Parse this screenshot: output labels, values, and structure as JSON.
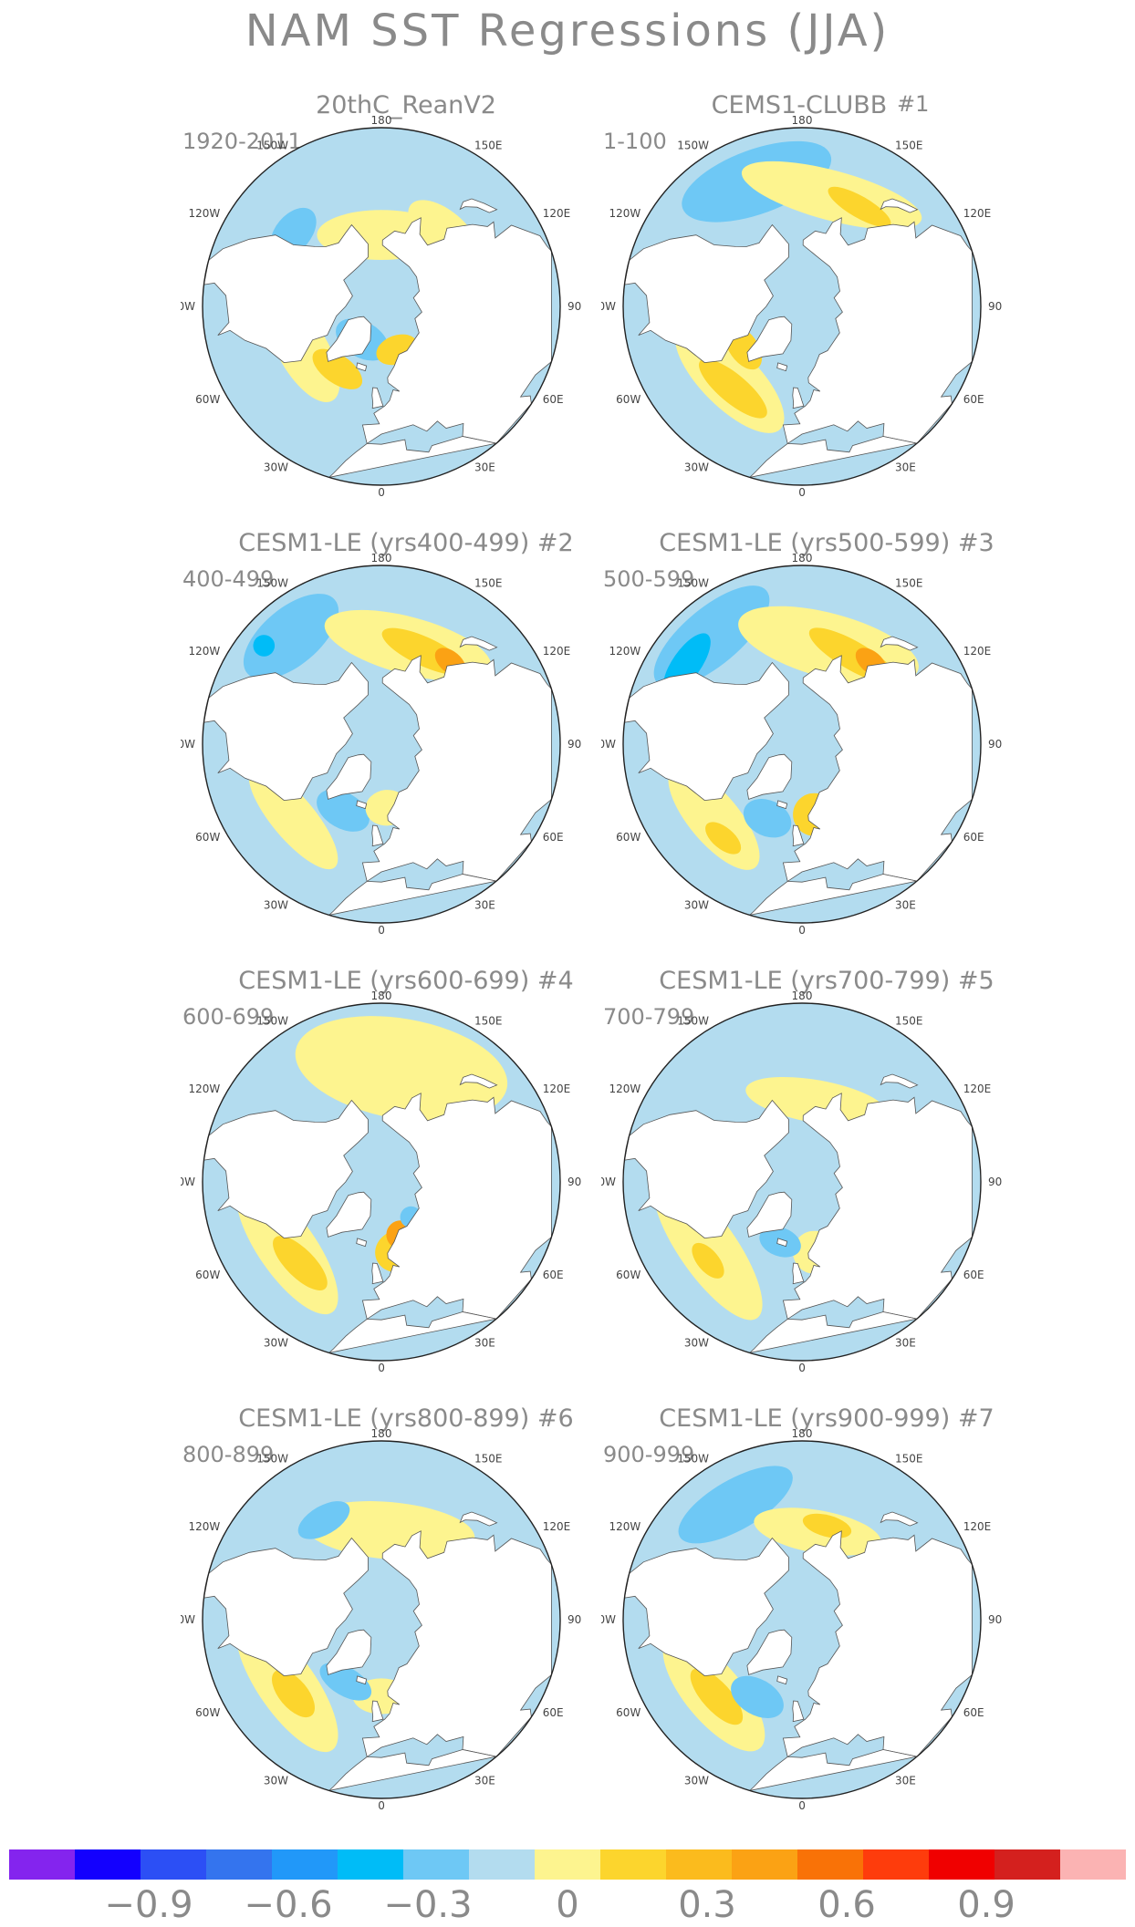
{
  "figure_title": "NAM SST Regressions (JJA)",
  "lon_labels": [
    "180",
    "150E",
    "120E",
    "90E",
    "60E",
    "30E",
    "0",
    "30W",
    "60W",
    "90W",
    "120W",
    "150W"
  ],
  "colors": {
    "text": "#8a8a8a",
    "ocean_neutral": "#b3dcef",
    "land": "#ffffff",
    "coast": "#555555",
    "pos1": "#fdf48f",
    "pos2": "#fcd52d",
    "pos3": "#fba214",
    "pos4": "#f97207",
    "neg1": "#6ec8f5",
    "neg2": "#00bcf7"
  },
  "panels": [
    {
      "title": "20thC_ReanV2",
      "tag": "",
      "period": "1920-2011",
      "blobs": [
        {
          "lat": 62,
          "lon": 180,
          "rx": 0.18,
          "ry": 0.07,
          "c": "pos1"
        },
        {
          "lat": 52,
          "lon": 140,
          "rx": 0.12,
          "ry": 0.06,
          "c": "pos1"
        },
        {
          "lat": 55,
          "lon": -60,
          "rx": 0.16,
          "ry": 0.07,
          "c": "pos1"
        },
        {
          "lat": 60,
          "lon": -35,
          "rx": 0.08,
          "ry": 0.04,
          "c": "pos2"
        },
        {
          "lat": 45,
          "lon": -130,
          "rx": 0.08,
          "ry": 0.05,
          "c": "neg1"
        },
        {
          "lat": 75,
          "lon": -30,
          "rx": 0.08,
          "ry": 0.05,
          "c": "neg1"
        },
        {
          "lat": 72,
          "lon": 20,
          "rx": 0.06,
          "ry": 0.04,
          "c": "pos2"
        }
      ]
    },
    {
      "title": "CEMS1-CLUBB",
      "tag": "#1",
      "period": "1-100",
      "blobs": [
        {
          "lat": 38,
          "lon": -160,
          "rx": 0.22,
          "ry": 0.09,
          "c": "neg1"
        },
        {
          "lat": 45,
          "lon": 165,
          "rx": 0.26,
          "ry": 0.07,
          "c": "pos1"
        },
        {
          "lat": 45,
          "lon": 150,
          "rx": 0.1,
          "ry": 0.03,
          "c": "pos2"
        },
        {
          "lat": 50,
          "lon": -45,
          "rx": 0.2,
          "ry": 0.08,
          "c": "pos1"
        },
        {
          "lat": 48,
          "lon": -40,
          "rx": 0.12,
          "ry": 0.04,
          "c": "pos2"
        },
        {
          "lat": 62,
          "lon": -55,
          "rx": 0.07,
          "ry": 0.04,
          "c": "pos2"
        }
      ]
    },
    {
      "title": "CESM1-LE (yrs400-499)",
      "tag": "#2",
      "period": "400-499",
      "blobs": [
        {
          "lat": 35,
          "lon": -140,
          "rx": 0.16,
          "ry": 0.08,
          "c": "neg1"
        },
        {
          "lat": 30,
          "lon": -130,
          "rx": 0.03,
          "ry": 0.03,
          "c": "neg2"
        },
        {
          "lat": 50,
          "lon": 165,
          "rx": 0.24,
          "ry": 0.08,
          "c": "pos1"
        },
        {
          "lat": 50,
          "lon": 155,
          "rx": 0.13,
          "ry": 0.04,
          "c": "pos2"
        },
        {
          "lat": 48,
          "lon": 140,
          "rx": 0.05,
          "ry": 0.03,
          "c": "pos3"
        },
        {
          "lat": 45,
          "lon": -50,
          "rx": 0.18,
          "ry": 0.06,
          "c": "pos1"
        },
        {
          "lat": 60,
          "lon": -30,
          "rx": 0.08,
          "ry": 0.05,
          "c": "neg1"
        },
        {
          "lat": 65,
          "lon": 5,
          "rx": 0.06,
          "ry": 0.05,
          "c": "pos1"
        }
      ]
    },
    {
      "title": "CESM1-LE (yrs500-599)",
      "tag": "#3",
      "period": "500-599",
      "blobs": [
        {
          "lat": 35,
          "lon": -140,
          "rx": 0.2,
          "ry": 0.08,
          "c": "neg1"
        },
        {
          "lat": 35,
          "lon": -125,
          "rx": 0.1,
          "ry": 0.04,
          "c": "neg2"
        },
        {
          "lat": 50,
          "lon": 165,
          "rx": 0.26,
          "ry": 0.09,
          "c": "pos1"
        },
        {
          "lat": 50,
          "lon": 150,
          "rx": 0.14,
          "ry": 0.04,
          "c": "pos2"
        },
        {
          "lat": 48,
          "lon": 140,
          "rx": 0.05,
          "ry": 0.03,
          "c": "pos3"
        },
        {
          "lat": 45,
          "lon": -50,
          "rx": 0.18,
          "ry": 0.07,
          "c": "pos1"
        },
        {
          "lat": 42,
          "lon": -40,
          "rx": 0.06,
          "ry": 0.03,
          "c": "pos2"
        },
        {
          "lat": 62,
          "lon": 10,
          "rx": 0.06,
          "ry": 0.06,
          "c": "pos2"
        },
        {
          "lat": 58,
          "lon": -25,
          "rx": 0.07,
          "ry": 0.05,
          "c": "neg1"
        }
      ]
    },
    {
      "title": "CESM1-LE (yrs600-699)",
      "tag": "#4",
      "period": "600-699",
      "blobs": [
        {
          "lat": 45,
          "lon": 170,
          "rx": 0.3,
          "ry": 0.14,
          "c": "pos1"
        },
        {
          "lat": 45,
          "lon": -55,
          "rx": 0.22,
          "ry": 0.08,
          "c": "pos1"
        },
        {
          "lat": 45,
          "lon": -45,
          "rx": 0.1,
          "ry": 0.04,
          "c": "pos2"
        },
        {
          "lat": 62,
          "lon": 15,
          "rx": 0.07,
          "ry": 0.06,
          "c": "pos2"
        },
        {
          "lat": 68,
          "lon": 20,
          "rx": 0.04,
          "ry": 0.04,
          "c": "pos3"
        },
        {
          "lat": 72,
          "lon": 40,
          "rx": 0.03,
          "ry": 0.03,
          "c": "neg1"
        }
      ]
    },
    {
      "title": "CESM1-LE (yrs700-799)",
      "tag": "#5",
      "period": "700-799",
      "blobs": [
        {
          "lat": 58,
          "lon": 170,
          "rx": 0.2,
          "ry": 0.06,
          "c": "pos1"
        },
        {
          "lat": 45,
          "lon": -55,
          "rx": 0.24,
          "ry": 0.08,
          "c": "pos1"
        },
        {
          "lat": 42,
          "lon": -50,
          "rx": 0.06,
          "ry": 0.03,
          "c": "pos2"
        },
        {
          "lat": 62,
          "lon": 10,
          "rx": 0.06,
          "ry": 0.06,
          "c": "pos1"
        },
        {
          "lat": 65,
          "lon": -20,
          "rx": 0.06,
          "ry": 0.04,
          "c": "neg1"
        }
      ]
    },
    {
      "title": "CESM1-LE (yrs800-899)",
      "tag": "#6",
      "period": "800-899",
      "blobs": [
        {
          "lat": 55,
          "lon": 175,
          "rx": 0.24,
          "ry": 0.08,
          "c": "pos1"
        },
        {
          "lat": 45,
          "lon": -150,
          "rx": 0.08,
          "ry": 0.04,
          "c": "neg1"
        },
        {
          "lat": 45,
          "lon": -55,
          "rx": 0.22,
          "ry": 0.08,
          "c": "pos1"
        },
        {
          "lat": 45,
          "lon": -50,
          "rx": 0.08,
          "ry": 0.04,
          "c": "pos2"
        },
        {
          "lat": 60,
          "lon": 0,
          "rx": 0.08,
          "ry": 0.05,
          "c": "pos1"
        },
        {
          "lat": 62,
          "lon": -30,
          "rx": 0.08,
          "ry": 0.04,
          "c": "neg1"
        }
      ]
    },
    {
      "title": "CESM1-LE (yrs900-999)",
      "tag": "#7",
      "period": "900-999",
      "blobs": [
        {
          "lat": 38,
          "lon": -150,
          "rx": 0.18,
          "ry": 0.07,
          "c": "neg1"
        },
        {
          "lat": 55,
          "lon": 170,
          "rx": 0.18,
          "ry": 0.06,
          "c": "pos1"
        },
        {
          "lat": 52,
          "lon": 165,
          "rx": 0.07,
          "ry": 0.03,
          "c": "pos2"
        },
        {
          "lat": 45,
          "lon": -50,
          "rx": 0.2,
          "ry": 0.08,
          "c": "pos1"
        },
        {
          "lat": 45,
          "lon": -48,
          "rx": 0.1,
          "ry": 0.04,
          "c": "pos2"
        },
        {
          "lat": 55,
          "lon": -30,
          "rx": 0.08,
          "ry": 0.05,
          "c": "neg1"
        }
      ]
    }
  ],
  "colorbar": {
    "colors": [
      "#8424ee",
      "#1300fe",
      "#2c4ff5",
      "#3474ee",
      "#2198f9",
      "#00bcf7",
      "#6ec8f5",
      "#b3dcef",
      "#fdf48f",
      "#fcd52d",
      "#fbbb1d",
      "#fba214",
      "#f97207",
      "#fe3c0c",
      "#f00000",
      "#d4201e",
      "#fbb3b3"
    ],
    "labels": [
      "-0.9",
      "-0.6",
      "-0.3",
      "0",
      "0.3",
      "0.6",
      "0.9"
    ],
    "label_values": [
      -0.9,
      -0.6,
      -0.3,
      0,
      0.3,
      0.6,
      0.9
    ],
    "range": [
      -1.2,
      1.2
    ]
  }
}
